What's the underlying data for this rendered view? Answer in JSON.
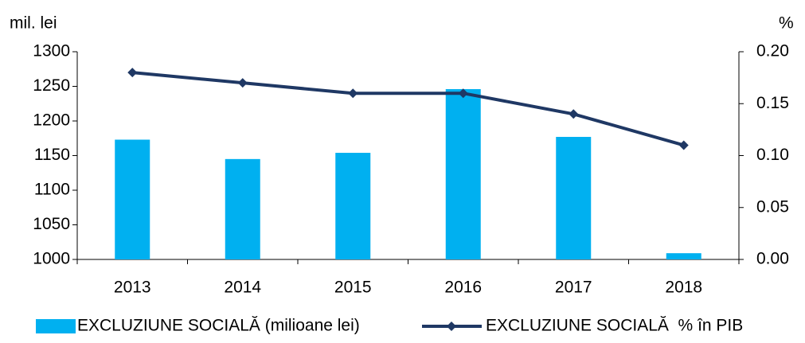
{
  "chart_data": {
    "type": "bar",
    "y_label": "mil. lei",
    "y2_label": "%",
    "categories": [
      "2013",
      "2014",
      "2015",
      "2016",
      "2017",
      "2018"
    ],
    "series": [
      {
        "name": "EXCLUZIUNE SOCIALĂ (milioane lei)",
        "type": "bar",
        "color": "#00b0f0",
        "values": [
          1173,
          1145,
          1154,
          1246,
          1177,
          1009
        ]
      },
      {
        "name": "EXCLUZIUNE SOCIALĂ  % în PIB",
        "type": "line",
        "axis": "y2",
        "color": "#1f3864",
        "values": [
          0.18,
          0.17,
          0.16,
          0.16,
          0.14,
          0.11
        ]
      }
    ],
    "ylim": [
      1000,
      1300
    ],
    "yticks": [
      1000,
      1050,
      1100,
      1150,
      1200,
      1250,
      1300
    ],
    "y2lim": [
      0,
      0.2
    ],
    "y2ticks": [
      {
        "value": 0,
        "label": "0.00"
      },
      0.05,
      {
        "value": 0.1,
        "label": "0.10"
      },
      0.15,
      {
        "value": 0.2,
        "label": "0.20"
      }
    ],
    "grid": false,
    "legend": "bottom"
  }
}
